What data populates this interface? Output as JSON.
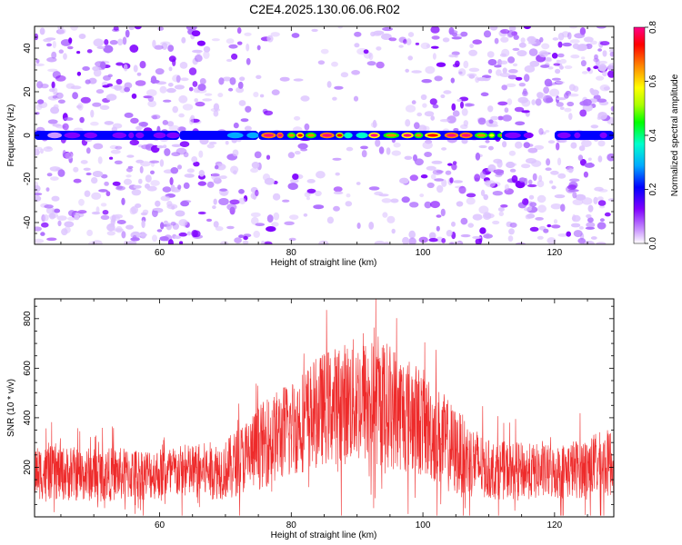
{
  "title": "C2E4.2025.130.06.06.R02",
  "colors": {
    "snr_line": "#ee2a2a",
    "axis": "#000000",
    "background": "#ffffff"
  },
  "chart_data": [
    {
      "type": "heatmap",
      "xlabel": "Height of straight line (km)",
      "ylabel": "Frequency (Hz)",
      "xlim": [
        41,
        129
      ],
      "ylim": [
        -50,
        50
      ],
      "x_ticks": [
        60,
        80,
        100,
        120
      ],
      "y_ticks": [
        -40,
        -20,
        0,
        20,
        40
      ],
      "colorbar": {
        "label": "Normalized spectral amplitude",
        "range": [
          0,
          0.8
        ],
        "ticks": [
          "0.0",
          "0.2",
          "0.4",
          "0.6",
          "0.8"
        ],
        "colormap": [
          "#ffffff",
          "#cc99ff",
          "#8000ff",
          "#0000ff",
          "#00aaff",
          "#00ffcc",
          "#00ff00",
          "#aaff00",
          "#ffff00",
          "#ff8800",
          "#ff0000",
          "#ff0088"
        ]
      },
      "band": {
        "frequency": 0,
        "segments": [
          {
            "x0": 41,
            "x1": 63,
            "amp": 0.25
          },
          {
            "x0": 63,
            "x1": 75,
            "amp": 0.35
          },
          {
            "x0": 75,
            "x1": 112,
            "amp": 0.7
          },
          {
            "x0": 112,
            "x1": 116,
            "amp": 0.3
          },
          {
            "x0": 120,
            "x1": 129,
            "amp": 0.25
          }
        ]
      }
    },
    {
      "type": "line",
      "xlabel": "Height of straight line (km)",
      "ylabel": "SNR (10 * v/v)",
      "xlim": [
        41,
        129
      ],
      "ylim": [
        0,
        880
      ],
      "x_ticks": [
        60,
        80,
        100,
        120
      ],
      "y_ticks": [
        200,
        400,
        600,
        800
      ],
      "envelope": {
        "x": [
          41,
          50,
          60,
          70,
          75,
          80,
          85,
          90,
          95,
          100,
          105,
          110,
          120,
          129
        ],
        "mean": [
          180,
          170,
          175,
          190,
          280,
          360,
          440,
          470,
          450,
          380,
          260,
          190,
          180,
          220
        ],
        "spread": [
          110,
          110,
          105,
          120,
          170,
          200,
          230,
          260,
          260,
          220,
          180,
          120,
          110,
          140
        ]
      }
    }
  ]
}
